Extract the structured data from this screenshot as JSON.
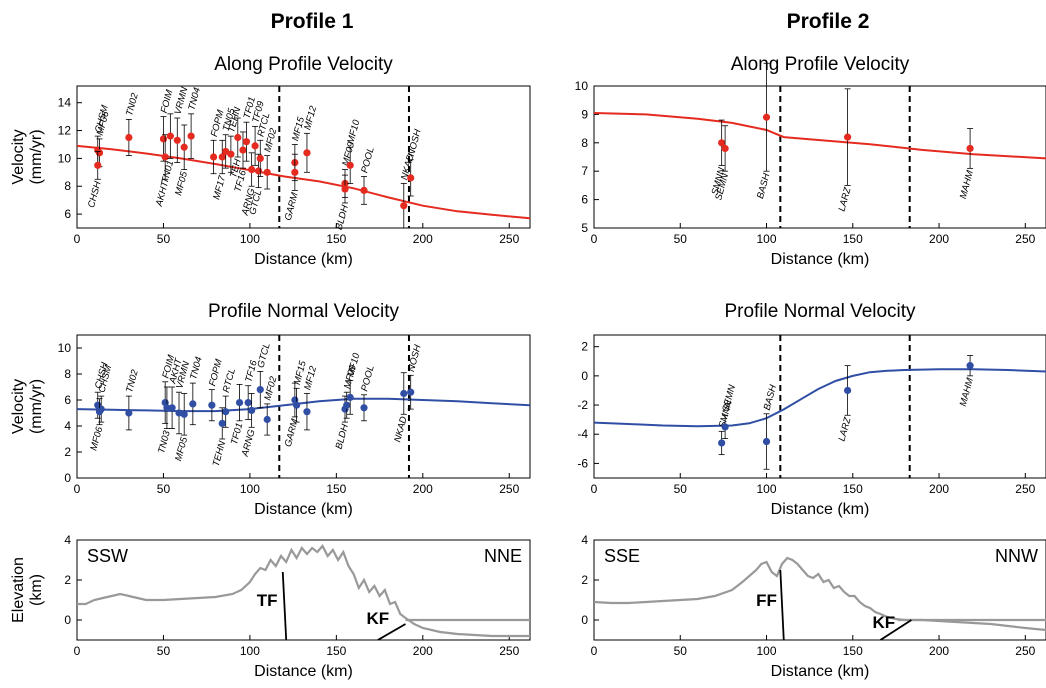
{
  "columns": [
    {
      "title": "Profile 1",
      "sw": "SSW",
      "ne": "NNE"
    },
    {
      "title": "Profile 2",
      "sw": "SSE",
      "ne": "NNW"
    }
  ],
  "colors": {
    "along": "#e52b20",
    "normal": "#2f4ea4",
    "topo": "#999999",
    "axis": "#000000"
  },
  "chart_data": [
    {
      "type": "scatter",
      "profile": "Profile 1",
      "title": "Along Profile Velocity",
      "xlabel": "Distance (km)",
      "ylabel": [
        "Velocity",
        "(mm/yr)"
      ],
      "xlim": [
        0,
        262
      ],
      "ylim": [
        5,
        15.2
      ],
      "xticks": [
        0,
        50,
        100,
        150,
        200,
        250
      ],
      "yticks": [
        6,
        8,
        10,
        12,
        14
      ],
      "faults": [
        117,
        192
      ],
      "points": [
        {
          "s": "CHSM",
          "x": 12,
          "y": 10.6,
          "e": 1.0,
          "la": 1
        },
        {
          "s": "MF06",
          "x": 13,
          "y": 10.4,
          "e": 1.0,
          "la": 1
        },
        {
          "s": "CHSH",
          "x": 12,
          "y": 9.5,
          "e": 1.0,
          "la": -1
        },
        {
          "s": "TN02",
          "x": 30,
          "y": 11.5,
          "e": 1.3,
          "la": 1
        },
        {
          "s": "FOIM",
          "x": 50,
          "y": 11.4,
          "e": 1.6,
          "la": 1
        },
        {
          "s": "AKHT",
          "x": 51,
          "y": 10.1,
          "e": 1.6,
          "la": -1
        },
        {
          "s": "TN01",
          "x": 54,
          "y": 11.6,
          "e": 1.6,
          "la": -1
        },
        {
          "s": "VRMN",
          "x": 58,
          "y": 11.3,
          "e": 1.6,
          "la": 1
        },
        {
          "s": "MF05",
          "x": 62,
          "y": 10.8,
          "e": 1.6,
          "la": -1
        },
        {
          "s": "TN04",
          "x": 66,
          "y": 11.6,
          "e": 1.6,
          "la": 1
        },
        {
          "s": "FOPM",
          "x": 79,
          "y": 10.1,
          "e": 1.2,
          "la": 1
        },
        {
          "s": "MF17",
          "x": 84,
          "y": 10.1,
          "e": 1.2,
          "la": -1
        },
        {
          "s": "TN05",
          "x": 86,
          "y": 10.5,
          "e": 1.2,
          "la": 1
        },
        {
          "s": "TEHN",
          "x": 89,
          "y": 10.3,
          "e": 1.3,
          "la": 1
        },
        {
          "s": "TEH",
          "x": 93,
          "y": 11.5,
          "e": 1.4,
          "la": -1
        },
        {
          "s": "TF16",
          "x": 96,
          "y": 10.6,
          "e": 1.3,
          "la": -1
        },
        {
          "s": "TF01",
          "x": 98,
          "y": 11.2,
          "e": 1.4,
          "la": 1
        },
        {
          "s": "ARNG",
          "x": 101,
          "y": 9.2,
          "e": 1.2,
          "la": -1
        },
        {
          "s": "TF09",
          "x": 103,
          "y": 10.9,
          "e": 1.4,
          "la": 1
        },
        {
          "s": "GTCL",
          "x": 105,
          "y": 9.1,
          "e": 1.2,
          "la": -1
        },
        {
          "s": "RTCL",
          "x": 106,
          "y": 10.0,
          "e": 1.3,
          "la": 1
        },
        {
          "s": "MF02",
          "x": 110,
          "y": 9.0,
          "e": 1.2,
          "la": 1
        },
        {
          "s": "MF15",
          "x": 126,
          "y": 9.7,
          "e": 1.3,
          "la": 1
        },
        {
          "s": "GARM",
          "x": 126,
          "y": 9.0,
          "e": 1.3,
          "la": -1
        },
        {
          "s": "MF12",
          "x": 133,
          "y": 10.4,
          "e": 1.4,
          "la": 1
        },
        {
          "s": "MF09",
          "x": 155,
          "y": 8.2,
          "e": 1.0,
          "la": 1
        },
        {
          "s": "BLDH",
          "x": 155,
          "y": 7.8,
          "e": 1.0,
          "la": -1
        },
        {
          "s": "MF10",
          "x": 158,
          "y": 9.5,
          "e": 1.3,
          "la": 1
        },
        {
          "s": "POOL",
          "x": 166,
          "y": 7.7,
          "e": 1.0,
          "la": 1
        },
        {
          "s": "NKAD",
          "x": 189,
          "y": 6.6,
          "e": 1.6,
          "la": 1
        },
        {
          "s": "NOSH",
          "x": 193,
          "y": 8.6,
          "e": 1.3,
          "la": 1
        }
      ],
      "curve_x": [
        0,
        20,
        40,
        60,
        80,
        100,
        120,
        140,
        160,
        180,
        200,
        220,
        240,
        262
      ],
      "curve_y": [
        10.9,
        10.65,
        10.35,
        10.0,
        9.6,
        9.15,
        8.7,
        8.35,
        7.85,
        7.2,
        6.6,
        6.2,
        5.95,
        5.7
      ]
    },
    {
      "type": "scatter",
      "profile": "Profile 2",
      "title": "Along Profile Velocity",
      "xlabel": "Distance (km)",
      "ylabel": [],
      "xlim": [
        0,
        262
      ],
      "ylim": [
        5,
        10
      ],
      "xticks": [
        0,
        50,
        100,
        150,
        200,
        250
      ],
      "yticks": [
        5,
        6,
        7,
        8,
        9,
        10
      ],
      "faults": [
        108,
        183
      ],
      "points": [
        {
          "s": "SMNN",
          "x": 74,
          "y": 8.0,
          "e": 0.8,
          "la": -1
        },
        {
          "s": "SEMN",
          "x": 76,
          "y": 7.8,
          "e": 0.8,
          "la": -1
        },
        {
          "s": "BASH",
          "x": 100,
          "y": 8.9,
          "e": 1.9,
          "la": -1
        },
        {
          "s": "LARZ",
          "x": 147,
          "y": 8.2,
          "e": 1.7,
          "la": -1
        },
        {
          "s": "MAHM",
          "x": 218,
          "y": 7.8,
          "e": 0.7,
          "la": -1
        }
      ],
      "curve_x": [
        0,
        30,
        60,
        80,
        100,
        110,
        130,
        160,
        190,
        220,
        262
      ],
      "curve_y": [
        9.05,
        9.0,
        8.85,
        8.7,
        8.45,
        8.2,
        8.1,
        7.95,
        7.75,
        7.6,
        7.45
      ]
    },
    {
      "type": "scatter",
      "profile": "Profile 1",
      "title": "Profile Normal Velocity",
      "xlabel": "Distance (km)",
      "ylabel": [
        "Velocity",
        "(mm/yr)"
      ],
      "xlim": [
        0,
        262
      ],
      "ylim": [
        0,
        11
      ],
      "xticks": [
        0,
        50,
        100,
        150,
        200,
        250
      ],
      "yticks": [
        0,
        2,
        4,
        6,
        8,
        10
      ],
      "faults": [
        117,
        192
      ],
      "points": [
        {
          "s": "CHSH",
          "x": 12,
          "y": 5.6,
          "e": 1.0,
          "la": 1
        },
        {
          "s": "CHSM",
          "x": 14,
          "y": 5.3,
          "e": 1.0,
          "la": 1
        },
        {
          "s": "MF06",
          "x": 13,
          "y": 5.1,
          "e": 1.0,
          "la": -1
        },
        {
          "s": "TN02",
          "x": 30,
          "y": 5.0,
          "e": 1.3,
          "la": 1
        },
        {
          "s": "FOIM",
          "x": 51,
          "y": 5.8,
          "e": 1.6,
          "la": 1
        },
        {
          "s": "TN03",
          "x": 52,
          "y": 5.4,
          "e": 1.6,
          "la": -1
        },
        {
          "s": "AKHT",
          "x": 55,
          "y": 5.4,
          "e": 1.6,
          "la": 1
        },
        {
          "s": "VRMN",
          "x": 59,
          "y": 5.0,
          "e": 1.6,
          "la": 1
        },
        {
          "s": "MF05",
          "x": 62,
          "y": 4.9,
          "e": 1.6,
          "la": -1
        },
        {
          "s": "TN04",
          "x": 67,
          "y": 5.7,
          "e": 1.6,
          "la": 1
        },
        {
          "s": "FOPM",
          "x": 78,
          "y": 5.6,
          "e": 1.2,
          "la": 1
        },
        {
          "s": "RTCL",
          "x": 86,
          "y": 5.1,
          "e": 1.2,
          "la": 1
        },
        {
          "s": "TEHN",
          "x": 84,
          "y": 4.2,
          "e": 1.2,
          "la": -1
        },
        {
          "s": "TF01",
          "x": 94,
          "y": 5.8,
          "e": 1.4,
          "la": -1
        },
        {
          "s": "TF16",
          "x": 99,
          "y": 5.8,
          "e": 1.3,
          "la": 1
        },
        {
          "s": "ARNG",
          "x": 101,
          "y": 5.2,
          "e": 1.3,
          "la": -1
        },
        {
          "s": "GTCL",
          "x": 106,
          "y": 6.8,
          "e": 1.4,
          "la": 1
        },
        {
          "s": "MF02",
          "x": 110,
          "y": 4.5,
          "e": 1.2,
          "la": 1
        },
        {
          "s": "GARM",
          "x": 126,
          "y": 6.0,
          "e": 1.3,
          "la": -1
        },
        {
          "s": "MF15",
          "x": 127,
          "y": 5.6,
          "e": 1.3,
          "la": 1
        },
        {
          "s": "MF12",
          "x": 133,
          "y": 5.1,
          "e": 1.4,
          "la": 1
        },
        {
          "s": "BLDH",
          "x": 155,
          "y": 5.3,
          "e": 1.0,
          "la": -1
        },
        {
          "s": "MF09",
          "x": 156,
          "y": 5.6,
          "e": 1.0,
          "la": 1
        },
        {
          "s": "MF10",
          "x": 158,
          "y": 6.2,
          "e": 1.3,
          "la": 1
        },
        {
          "s": "POOL",
          "x": 166,
          "y": 5.4,
          "e": 1.0,
          "la": 1
        },
        {
          "s": "NKAD",
          "x": 189,
          "y": 6.5,
          "e": 1.6,
          "la": -1
        },
        {
          "s": "NOSH",
          "x": 193,
          "y": 6.6,
          "e": 1.3,
          "la": 1
        }
      ],
      "curve_x": [
        0,
        20,
        40,
        60,
        80,
        100,
        120,
        140,
        160,
        180,
        200,
        220,
        240,
        262
      ],
      "curve_y": [
        5.3,
        5.25,
        5.2,
        5.15,
        5.15,
        5.3,
        5.6,
        5.9,
        6.1,
        6.1,
        6.0,
        5.9,
        5.75,
        5.6
      ]
    },
    {
      "type": "scatter",
      "profile": "Profile 2",
      "title": "Profile Normal Velocity",
      "xlabel": "Distance (km)",
      "ylabel": [],
      "xlim": [
        0,
        262
      ],
      "ylim": [
        -7,
        2.8
      ],
      "xticks": [
        0,
        50,
        100,
        150,
        200,
        250
      ],
      "yticks": [
        -6,
        -4,
        -2,
        0,
        2
      ],
      "faults": [
        108,
        183
      ],
      "points": [
        {
          "s": "SMNN",
          "x": 74,
          "y": -4.6,
          "e": 0.8,
          "la": 1
        },
        {
          "s": "SEMN",
          "x": 76,
          "y": -3.5,
          "e": 0.8,
          "la": 1
        },
        {
          "s": "BASH",
          "x": 100,
          "y": -4.5,
          "e": 1.9,
          "la": 1
        },
        {
          "s": "LARZ",
          "x": 147,
          "y": -1.0,
          "e": 1.7,
          "la": -1
        },
        {
          "s": "MAHM",
          "x": 218,
          "y": 0.7,
          "e": 0.7,
          "la": -1
        }
      ],
      "curve_x": [
        0,
        20,
        40,
        60,
        80,
        90,
        100,
        110,
        120,
        130,
        140,
        150,
        160,
        170,
        180,
        200,
        220,
        240,
        262
      ],
      "curve_y": [
        -3.2,
        -3.3,
        -3.4,
        -3.45,
        -3.4,
        -3.25,
        -2.9,
        -2.3,
        -1.6,
        -0.9,
        -0.35,
        0.0,
        0.25,
        0.35,
        0.4,
        0.45,
        0.45,
        0.4,
        0.3
      ]
    },
    {
      "type": "line",
      "profile": "Profile 1",
      "title": "",
      "xlabel": "Distance (km)",
      "ylabel": [
        "Elevation",
        "(km)"
      ],
      "xlim": [
        0,
        262
      ],
      "ylim": [
        -1,
        4
      ],
      "xticks": [
        0,
        50,
        100,
        150,
        200,
        250
      ],
      "yticks": [
        0,
        2,
        4
      ],
      "fault_labels": [
        {
          "label": "TF",
          "x": 110,
          "y": 0.7
        },
        {
          "label": "KF",
          "x": 174,
          "y": -0.2
        }
      ],
      "fault_lines": [
        [
          119,
          2.4,
          121,
          -1
        ],
        [
          174,
          -1,
          190,
          -0.2
        ]
      ],
      "topo_x": [
        0,
        5,
        10,
        15,
        20,
        25,
        30,
        35,
        40,
        45,
        50,
        60,
        70,
        80,
        90,
        95,
        100,
        103,
        106,
        109,
        112,
        115,
        118,
        121,
        124,
        127,
        130,
        133,
        136,
        139,
        142,
        145,
        148,
        151,
        154,
        157,
        160,
        163,
        166,
        169,
        172,
        175,
        178,
        181,
        184,
        187,
        190,
        195,
        200,
        210,
        220,
        230,
        240,
        250,
        262
      ],
      "topo_y": [
        0.8,
        0.8,
        1.0,
        1.1,
        1.2,
        1.3,
        1.2,
        1.1,
        1.0,
        1.0,
        1.0,
        1.05,
        1.1,
        1.15,
        1.3,
        1.5,
        1.9,
        2.3,
        2.6,
        2.5,
        3.0,
        2.7,
        3.2,
        2.9,
        3.5,
        3.1,
        3.6,
        3.3,
        3.6,
        3.4,
        3.7,
        3.2,
        3.5,
        3.0,
        3.4,
        2.7,
        2.3,
        1.6,
        2.0,
        1.4,
        1.7,
        1.2,
        1.5,
        0.8,
        0.9,
        0.3,
        0.1,
        -0.2,
        -0.4,
        -0.6,
        -0.7,
        -0.75,
        -0.8,
        -0.8,
        -0.8
      ],
      "sea_x": [
        190,
        262
      ],
      "sea_y": [
        0,
        0
      ]
    },
    {
      "type": "line",
      "profile": "Profile 2",
      "title": "",
      "xlabel": "Distance (km)",
      "ylabel": [],
      "xlim": [
        0,
        262
      ],
      "ylim": [
        -1,
        4
      ],
      "xticks": [
        0,
        50,
        100,
        150,
        200,
        250
      ],
      "yticks": [
        0,
        2,
        4
      ],
      "fault_labels": [
        {
          "label": "FF",
          "x": 100,
          "y": 0.7
        },
        {
          "label": "KF",
          "x": 168,
          "y": -0.4
        }
      ],
      "fault_lines": [
        [
          108,
          2.5,
          110,
          -1
        ],
        [
          166,
          -1,
          184,
          0
        ]
      ],
      "topo_x": [
        0,
        10,
        20,
        30,
        40,
        50,
        60,
        70,
        80,
        86,
        90,
        94,
        97,
        100,
        103,
        106,
        109,
        112,
        115,
        118,
        121,
        124,
        127,
        130,
        133,
        136,
        139,
        142,
        145,
        148,
        151,
        154,
        157,
        160,
        163,
        166,
        170,
        175,
        180,
        190,
        200,
        210,
        220,
        230,
        240,
        250,
        262
      ],
      "topo_y": [
        0.9,
        0.85,
        0.85,
        0.9,
        0.95,
        1.0,
        1.05,
        1.2,
        1.5,
        1.9,
        2.2,
        2.5,
        2.8,
        2.9,
        2.4,
        2.2,
        2.8,
        3.1,
        3.0,
        2.8,
        2.5,
        2.2,
        2.1,
        2.3,
        1.9,
        2.0,
        1.6,
        1.7,
        1.4,
        1.2,
        1.2,
        0.9,
        0.7,
        0.6,
        0.4,
        0.3,
        0.15,
        0.05,
        0.0,
        0.0,
        -0.05,
        -0.1,
        -0.15,
        -0.2,
        -0.3,
        -0.4,
        -0.5
      ],
      "sea_x": [
        176,
        262
      ],
      "sea_y": [
        0,
        0
      ]
    }
  ]
}
